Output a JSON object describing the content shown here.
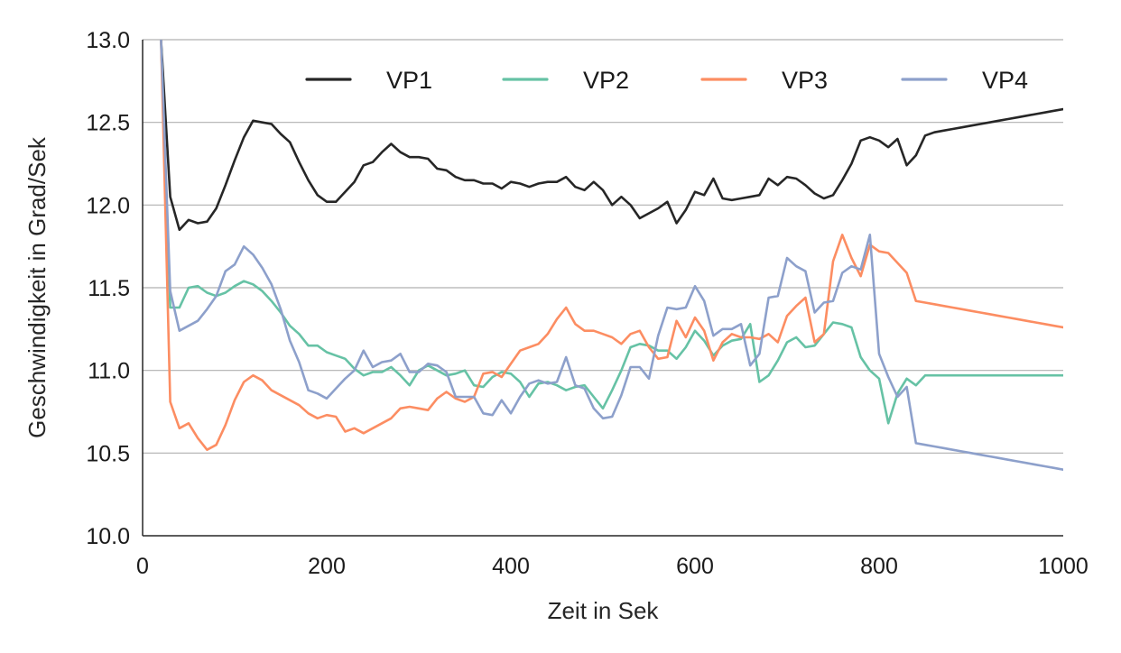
{
  "chart_data": {
    "type": "line",
    "title": "",
    "xlabel": "Zeit in Sek",
    "ylabel": "Geschwindigkeit in Grad/Sek",
    "xlim": [
      0,
      1000
    ],
    "ylim": [
      10.0,
      13.0
    ],
    "xticks": [
      "0",
      "200",
      "400",
      "600",
      "800",
      "1000"
    ],
    "yticks": [
      "10.0",
      "10.5",
      "11.0",
      "11.5",
      "12.0",
      "12.5",
      "13.0"
    ],
    "grid": "horizontal",
    "legend_position": "top",
    "x": [
      20,
      30,
      40,
      50,
      60,
      70,
      80,
      90,
      100,
      110,
      120,
      130,
      140,
      150,
      160,
      170,
      180,
      190,
      200,
      210,
      220,
      230,
      240,
      250,
      260,
      270,
      280,
      290,
      300,
      310,
      320,
      330,
      340,
      350,
      360,
      370,
      380,
      390,
      400,
      410,
      420,
      430,
      440,
      450,
      460,
      470,
      480,
      490,
      500,
      510,
      520,
      530,
      540,
      550,
      560,
      570,
      580,
      590,
      600,
      610,
      620,
      630,
      640,
      650,
      660,
      670,
      680,
      690,
      700,
      710,
      720,
      730,
      740,
      750,
      760,
      770,
      780,
      790,
      800,
      810,
      820,
      830,
      840,
      850,
      860,
      870,
      880,
      890,
      900,
      910,
      920,
      930,
      940,
      950,
      960,
      970,
      980,
      990,
      1000
    ],
    "series": [
      {
        "name": "VP1",
        "color": "#262626",
        "values": [
          13.0,
          12.05,
          11.85,
          11.91,
          11.89,
          11.9,
          11.98,
          12.12,
          12.27,
          12.41,
          12.51,
          12.5,
          12.49,
          12.43,
          12.38,
          12.26,
          12.15,
          12.06,
          12.02,
          12.02,
          12.08,
          12.14,
          12.24,
          12.26,
          12.32,
          12.37,
          12.32,
          12.29,
          12.29,
          12.28,
          12.22,
          12.21,
          12.17,
          12.15,
          12.15,
          12.13,
          12.13,
          12.1,
          12.14,
          12.13,
          12.11,
          12.13,
          12.14,
          12.14,
          12.17,
          12.11,
          12.09,
          12.14,
          12.09,
          12.0,
          12.05,
          12.0,
          11.92,
          11.95,
          11.98,
          12.02,
          11.89,
          11.97,
          12.08,
          12.06,
          12.16,
          12.04,
          12.03,
          12.04,
          12.05,
          12.06,
          12.16,
          12.12,
          12.17,
          12.16,
          12.12,
          12.07,
          12.04,
          12.06,
          12.15,
          12.25,
          12.39,
          12.41,
          12.39,
          12.35,
          12.4,
          12.24,
          12.3,
          12.42,
          12.44,
          12.45,
          12.46,
          12.47,
          12.48,
          12.49,
          12.5,
          12.51,
          12.52,
          12.53,
          12.54,
          12.55,
          12.56,
          12.57,
          12.58
        ]
      },
      {
        "name": "VP2",
        "color": "#66c2a5",
        "values": [
          13.0,
          11.38,
          11.38,
          11.5,
          11.51,
          11.47,
          11.45,
          11.47,
          11.51,
          11.54,
          11.52,
          11.48,
          11.42,
          11.35,
          11.27,
          11.22,
          11.15,
          11.15,
          11.11,
          11.09,
          11.07,
          11.01,
          10.97,
          10.99,
          10.99,
          11.02,
          10.97,
          10.91,
          11.0,
          11.03,
          11.0,
          10.97,
          10.98,
          11.0,
          10.91,
          10.9,
          10.96,
          10.99,
          10.98,
          10.93,
          10.84,
          10.92,
          10.93,
          10.91,
          10.88,
          10.9,
          10.91,
          10.84,
          10.77,
          10.88,
          11.0,
          11.14,
          11.16,
          11.15,
          11.12,
          11.12,
          11.07,
          11.14,
          11.24,
          11.18,
          11.09,
          11.15,
          11.18,
          11.19,
          11.28,
          10.93,
          10.97,
          11.06,
          11.17,
          11.2,
          11.14,
          11.15,
          11.22,
          11.29,
          11.28,
          11.26,
          11.08,
          11.0,
          10.95,
          10.68,
          10.86,
          10.95,
          10.91,
          10.97,
          10.97,
          10.97,
          10.97,
          10.97,
          10.97,
          10.97,
          10.97,
          10.97,
          10.97,
          10.97,
          10.97,
          10.97,
          10.97,
          10.97,
          10.97
        ]
      },
      {
        "name": "VP3",
        "color": "#fc8d62",
        "values": [
          13.0,
          10.81,
          10.65,
          10.68,
          10.59,
          10.52,
          10.55,
          10.67,
          10.82,
          10.93,
          10.97,
          10.94,
          10.88,
          10.85,
          10.82,
          10.79,
          10.74,
          10.71,
          10.73,
          10.72,
          10.63,
          10.65,
          10.62,
          10.65,
          10.68,
          10.71,
          10.77,
          10.78,
          10.77,
          10.76,
          10.83,
          10.87,
          10.83,
          10.81,
          10.84,
          10.98,
          10.99,
          10.96,
          11.04,
          11.12,
          11.14,
          11.16,
          11.22,
          11.31,
          11.38,
          11.28,
          11.24,
          11.24,
          11.22,
          11.2,
          11.16,
          11.22,
          11.24,
          11.14,
          11.07,
          11.08,
          11.3,
          11.2,
          11.32,
          11.24,
          11.06,
          11.17,
          11.22,
          11.2,
          11.2,
          11.19,
          11.22,
          11.17,
          11.33,
          11.39,
          11.44,
          11.17,
          11.22,
          11.66,
          11.82,
          11.68,
          11.57,
          11.76,
          11.72,
          11.71,
          11.65,
          11.59,
          11.42,
          11.41,
          11.4,
          11.39,
          11.38,
          11.37,
          11.36,
          11.35,
          11.34,
          11.33,
          11.32,
          11.31,
          11.3,
          11.29,
          11.28,
          11.27,
          11.26
        ]
      },
      {
        "name": "VP4",
        "color": "#8da0cb",
        "values": [
          13.0,
          11.48,
          11.24,
          11.27,
          11.3,
          11.37,
          11.45,
          11.6,
          11.64,
          11.75,
          11.7,
          11.62,
          11.52,
          11.37,
          11.18,
          11.05,
          10.88,
          10.86,
          10.83,
          10.89,
          10.95,
          11.0,
          11.12,
          11.02,
          11.05,
          11.06,
          11.1,
          10.99,
          10.99,
          11.04,
          11.03,
          10.99,
          10.84,
          10.84,
          10.84,
          10.74,
          10.73,
          10.82,
          10.74,
          10.84,
          10.92,
          10.94,
          10.92,
          10.93,
          11.08,
          10.91,
          10.89,
          10.77,
          10.71,
          10.72,
          10.85,
          11.02,
          11.02,
          10.95,
          11.21,
          11.38,
          11.37,
          11.38,
          11.51,
          11.42,
          11.21,
          11.25,
          11.25,
          11.28,
          11.03,
          11.1,
          11.44,
          11.45,
          11.68,
          11.63,
          11.6,
          11.35,
          11.41,
          11.42,
          11.59,
          11.63,
          11.61,
          11.82,
          11.1,
          10.96,
          10.84,
          10.9,
          10.56,
          10.55,
          10.54,
          10.53,
          10.52,
          10.51,
          10.5,
          10.49,
          10.48,
          10.47,
          10.46,
          10.45,
          10.44,
          10.43,
          10.42,
          10.41,
          10.4
        ]
      }
    ]
  }
}
